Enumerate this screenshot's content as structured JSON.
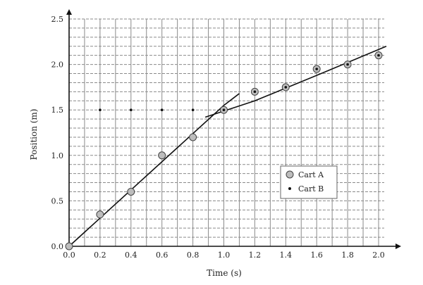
{
  "chart_data": {
    "type": "scatter",
    "xlabel": "Time (s)",
    "ylabel": "Position (m)",
    "xlim": [
      0.0,
      2.0
    ],
    "ylim": [
      0.0,
      2.5
    ],
    "x_ticks": [
      "0.0",
      "0.2",
      "0.4",
      "0.6",
      "0.8",
      "1.0",
      "1.2",
      "1.4",
      "1.6",
      "1.8",
      "2.0"
    ],
    "y_ticks": [
      "0.0",
      "0.5",
      "1.0",
      "1.5",
      "2.0",
      "2.5"
    ],
    "grid": true,
    "legend_position": "lower-right",
    "series": [
      {
        "name": "Cart A",
        "marker": "open-circle",
        "color": "#aaaaaa",
        "points": [
          {
            "x": 0.0,
            "y": 0.0
          },
          {
            "x": 0.2,
            "y": 0.35
          },
          {
            "x": 0.4,
            "y": 0.6
          },
          {
            "x": 0.6,
            "y": 1.0
          },
          {
            "x": 0.8,
            "y": 1.2
          },
          {
            "x": 1.0,
            "y": 1.5
          },
          {
            "x": 1.2,
            "y": 1.7
          },
          {
            "x": 1.4,
            "y": 1.75
          },
          {
            "x": 1.6,
            "y": 1.95
          },
          {
            "x": 1.8,
            "y": 2.0
          },
          {
            "x": 2.0,
            "y": 2.1
          }
        ]
      },
      {
        "name": "Cart B",
        "marker": "dot",
        "color": "#111111",
        "points": [
          {
            "x": 0.2,
            "y": 1.5
          },
          {
            "x": 0.4,
            "y": 1.5
          },
          {
            "x": 0.6,
            "y": 1.5
          },
          {
            "x": 0.8,
            "y": 1.5
          },
          {
            "x": 1.0,
            "y": 1.5
          },
          {
            "x": 1.2,
            "y": 1.7
          },
          {
            "x": 1.4,
            "y": 1.75
          },
          {
            "x": 1.6,
            "y": 1.95
          },
          {
            "x": 1.8,
            "y": 2.0
          },
          {
            "x": 2.0,
            "y": 2.1
          }
        ]
      }
    ],
    "fit_lines": [
      {
        "points": [
          {
            "x": 0.0,
            "y": 0.0
          },
          {
            "x": 1.0,
            "y": 1.55
          },
          {
            "x": 1.1,
            "y": 1.68
          }
        ]
      },
      {
        "points": [
          {
            "x": 0.88,
            "y": 1.42
          },
          {
            "x": 1.2,
            "y": 1.6
          },
          {
            "x": 1.6,
            "y": 1.88
          },
          {
            "x": 2.05,
            "y": 2.2
          }
        ]
      }
    ]
  }
}
